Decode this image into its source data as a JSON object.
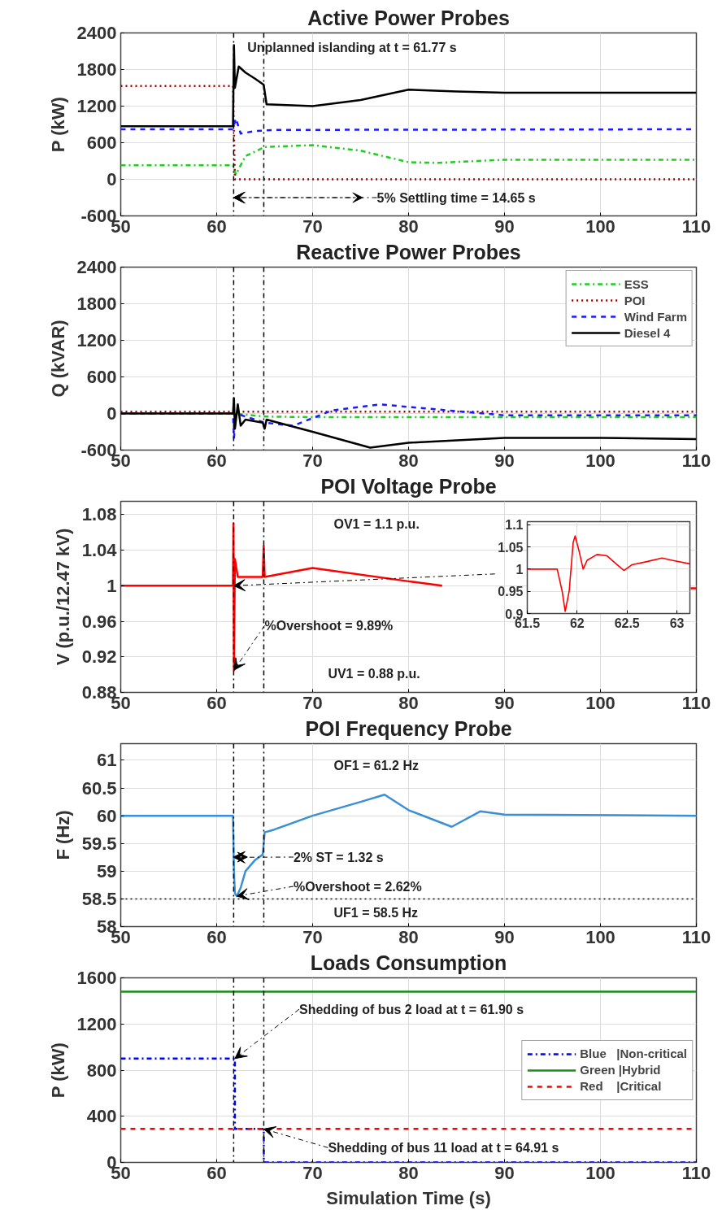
{
  "chart_data": [
    {
      "type": "line",
      "title": "Active Power Probes",
      "ylabel": "P (kW)",
      "xlim": [
        50,
        110
      ],
      "xticks": [
        50,
        60,
        70,
        80,
        90,
        100,
        110
      ],
      "ylim": [
        -600,
        2400
      ],
      "yticks": [
        -600,
        0,
        600,
        1200,
        1800,
        2400
      ],
      "grid": true,
      "annotations": [
        "Unplanned islanding at t = 61.77 s",
        {
          "text": "5% Settling time = 14.65 s",
          "x": 61.77,
          "y": -300
        }
      ],
      "ref_lines": [
        {
          "axis": "x",
          "value": 61.77,
          "color": "#000000",
          "line_style": "dashdot"
        },
        {
          "axis": "x",
          "value": 64.91,
          "color": "#000000",
          "line_style": "dashdot"
        }
      ],
      "series": [
        {
          "color": "#22cc22",
          "line_style": "dashdot",
          "x": [
            50,
            61.7,
            62,
            63,
            65,
            70,
            75,
            80,
            83,
            90,
            110
          ],
          "values": [
            230,
            230,
            80,
            380,
            530,
            560,
            470,
            280,
            270,
            320,
            320
          ]
        },
        {
          "color": "#a00000",
          "line_style": "dotted",
          "x": [
            50,
            61.7,
            61.9,
            110
          ],
          "values": [
            1530,
            1530,
            0,
            0
          ]
        },
        {
          "color": "#1a1aff",
          "line_style": "dashed",
          "x": [
            50,
            61.7,
            62,
            62.5,
            64,
            66,
            110
          ],
          "values": [
            820,
            820,
            1000,
            750,
            790,
            810,
            820
          ]
        },
        {
          "color": "#000000",
          "line_style": "solid",
          "x": [
            50,
            61.7,
            61.8,
            61.9,
            62.3,
            63,
            64,
            64.9,
            65.2,
            70,
            75,
            80,
            85,
            90,
            110
          ],
          "values": [
            870,
            870,
            2200,
            1500,
            1850,
            1750,
            1650,
            1550,
            1230,
            1200,
            1300,
            1470,
            1440,
            1420,
            1420
          ]
        }
      ]
    },
    {
      "type": "line",
      "title": "Reactive Power Probes",
      "ylabel": "Q (kVAR)",
      "xlim": [
        50,
        110
      ],
      "xticks": [
        50,
        60,
        70,
        80,
        90,
        100,
        110
      ],
      "ylim": [
        -600,
        2400
      ],
      "yticks": [
        -600,
        0,
        600,
        1200,
        1800,
        2400
      ],
      "grid": true,
      "legend": "top right",
      "ref_lines": [
        {
          "axis": "x",
          "value": 61.77,
          "color": "#000000",
          "line_style": "dashdot"
        },
        {
          "axis": "x",
          "value": 64.91,
          "color": "#000000",
          "line_style": "dashdot"
        }
      ],
      "series": [
        {
          "name": "ESS",
          "color": "#22cc22",
          "line_style": "dashdot",
          "x": [
            50,
            61.7,
            65,
            70,
            110
          ],
          "values": [
            0,
            0,
            -50,
            -60,
            -60
          ]
        },
        {
          "name": "POI",
          "color": "#a00000",
          "line_style": "dotted",
          "x": [
            50,
            110
          ],
          "values": [
            30,
            30
          ]
        },
        {
          "name": "Wind Farm",
          "color": "#1a1aff",
          "line_style": "dashed",
          "x": [
            50,
            61.7,
            61.8,
            62,
            65,
            68,
            72,
            77,
            82,
            90,
            110
          ],
          "values": [
            0,
            0,
            -400,
            0,
            -150,
            -200,
            50,
            150,
            80,
            -30,
            -30
          ]
        },
        {
          "name": "Diesel 4",
          "color": "#000000",
          "line_style": "solid",
          "x": [
            50,
            61.7,
            61.8,
            61.9,
            62.2,
            62.5,
            63,
            64.8,
            65,
            65.2,
            70,
            76,
            80,
            90,
            100,
            110
          ],
          "values": [
            0,
            0,
            250,
            -250,
            150,
            -200,
            -100,
            -150,
            -250,
            -100,
            -300,
            -560,
            -480,
            -400,
            -400,
            -420
          ]
        }
      ]
    },
    {
      "type": "line",
      "title": "POI Voltage Probe",
      "ylabel": "V (p.u./12.47 kV)",
      "xlim": [
        50,
        110
      ],
      "xticks": [
        50,
        60,
        70,
        80,
        90,
        100,
        110
      ],
      "ylim": [
        0.88,
        1.095
      ],
      "yticks": [
        0.88,
        0.92,
        0.96,
        1,
        1.04,
        1.08
      ],
      "grid": true,
      "annotations": [
        "OV1 = 1.1 p.u.",
        {
          "text": "%Overshoot = 9.89%",
          "x": 61.8,
          "y": 0.905
        },
        "UV1 = 0.88 p.u."
      ],
      "ref_lines": [
        {
          "axis": "x",
          "value": 61.77,
          "color": "#000000",
          "line_style": "dashdot"
        },
        {
          "axis": "x",
          "value": 64.91,
          "color": "#000000",
          "line_style": "dashdot"
        }
      ],
      "series": [
        {
          "color": "#ff0000",
          "line_style": "solid",
          "x": [
            50,
            61.7,
            61.75,
            61.8,
            61.9,
            62.2,
            64.8,
            64.9,
            65,
            70,
            80,
            83.5,
            90,
            109.4,
            110
          ],
          "values": [
            1,
            1,
            1.07,
            0.905,
            1.03,
            1.01,
            1.01,
            1.045,
            1.01,
            1.02,
            1.005,
            1.0,
            null,
            0.997,
            0.997
          ]
        }
      ]
    },
    {
      "type": "line",
      "xlim": [
        61.5,
        63.13
      ],
      "xticks": [
        61.5,
        62,
        62.5,
        63
      ],
      "ylim": [
        0.9,
        1.107
      ],
      "yticks": [
        0.9,
        0.95,
        1,
        1.05,
        1.1
      ],
      "grid": true,
      "series": [
        {
          "color": "#ff0000",
          "line_style": "solid",
          "x": [
            61.5,
            61.8,
            61.85,
            61.88,
            61.92,
            61.96,
            61.98,
            62.02,
            62.06,
            62.1,
            62.2,
            62.3,
            62.4,
            62.47,
            62.55,
            62.7,
            62.85,
            62.95,
            63.13
          ],
          "values": [
            1,
            1,
            0.95,
            0.905,
            0.95,
            1.06,
            1.075,
            1.04,
            1.0,
            1.02,
            1.033,
            1.03,
            1.01,
            0.997,
            1.01,
            1.017,
            1.025,
            1.02,
            1.012
          ]
        }
      ]
    },
    {
      "type": "line",
      "title": "POI Frequency Probe",
      "ylabel": "F (Hz)",
      "xlim": [
        50,
        110
      ],
      "xticks": [
        50,
        60,
        70,
        80,
        90,
        100,
        110
      ],
      "ylim": [
        58,
        61.3
      ],
      "yticks": [
        58,
        58.5,
        59,
        59.5,
        60,
        60.5,
        61
      ],
      "grid": true,
      "annotations": [
        "OF1 = 61.2 Hz",
        {
          "text": "2% ST = 1.32 s",
          "x": 61.77,
          "y": 59.25
        },
        {
          "text": "%Overshoot = 2.62%",
          "x": 62.1,
          "y": 58.55
        }
      ],
      "ref_lines": [
        {
          "axis": "x",
          "value": 61.77,
          "color": "#000000",
          "line_style": "dashdot"
        },
        {
          "axis": "x",
          "value": 64.91,
          "color": "#000000",
          "line_style": "dashdot"
        },
        {
          "axis": "y",
          "value": 58.5,
          "label": "UF1 = 58.5 Hz",
          "color": "#000000",
          "line_style": "dotted"
        }
      ],
      "series": [
        {
          "color": "#3a8fd6",
          "line_style": "solid",
          "x": [
            50,
            61.7,
            61.8,
            61.9,
            62.1,
            62.5,
            63,
            64,
            64.8,
            65,
            66,
            70,
            75,
            77.5,
            80,
            84.5,
            87.5,
            90,
            110
          ],
          "values": [
            60,
            60,
            59.0,
            58.6,
            58.55,
            58.7,
            59.0,
            59.2,
            59.3,
            59.7,
            59.75,
            60.0,
            60.25,
            60.38,
            60.1,
            59.8,
            60.08,
            60.02,
            60
          ]
        }
      ]
    },
    {
      "type": "line",
      "title": "Loads Consumption",
      "ylabel": "P (kW)",
      "xlabel": "Simulation Time (s)",
      "xlim": [
        50,
        110
      ],
      "xticks": [
        50,
        60,
        70,
        80,
        90,
        100,
        110
      ],
      "ylim": [
        0,
        1600
      ],
      "yticks": [
        0,
        400,
        800,
        1200,
        1600
      ],
      "grid": true,
      "legend": "right",
      "annotations": [
        {
          "text": "Shedding of bus 2 load at t = 61.90 s",
          "x": 61.9,
          "y": 900
        },
        {
          "text": "Shedding of bus 11 load at t = 64.91 s",
          "x": 64.91,
          "y": 290
        }
      ],
      "ref_lines": [
        {
          "axis": "x",
          "value": 61.77,
          "color": "#000000",
          "line_style": "dashdot"
        },
        {
          "axis": "x",
          "value": 64.91,
          "color": "#000000",
          "line_style": "dashdot"
        }
      ],
      "series": [
        {
          "name": "Blue   |Non-critical",
          "color": "#0000ff",
          "line_style": "dashdot",
          "x": [
            50,
            61.9,
            61.9,
            64.91,
            64.91,
            110
          ],
          "values": [
            900,
            900,
            290,
            290,
            0,
            0
          ]
        },
        {
          "name": "Green |Hybrid",
          "color": "#1a8c1a",
          "line_style": "solid",
          "x": [
            50,
            110
          ],
          "values": [
            1480,
            1480
          ]
        },
        {
          "name": "Red    |Critical",
          "color": "#ff0000",
          "line_style": "dashed",
          "x": [
            50,
            110
          ],
          "values": [
            290,
            290
          ]
        }
      ]
    }
  ]
}
